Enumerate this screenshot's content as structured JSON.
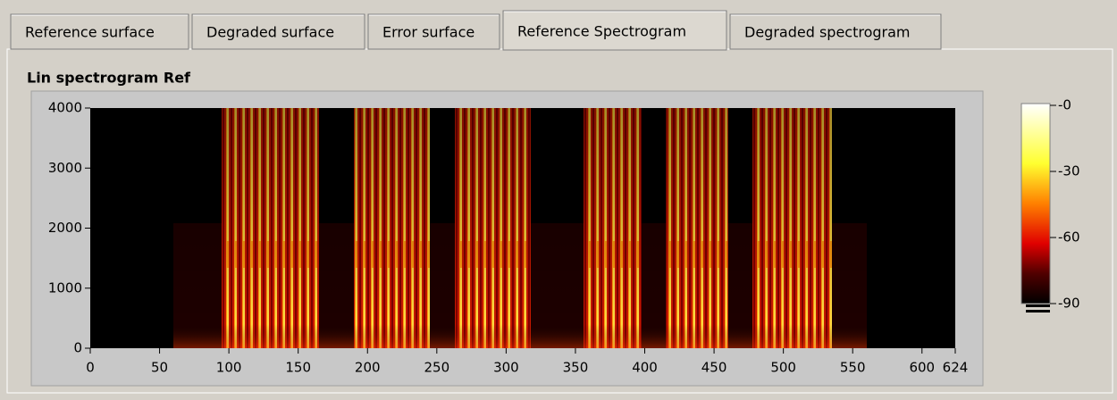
{
  "tabs": [
    {
      "label": "Reference surface",
      "active": false
    },
    {
      "label": "Degraded surface",
      "active": false
    },
    {
      "label": "Error surface",
      "active": false
    },
    {
      "label": "Reference Spectrogram",
      "active": true
    },
    {
      "label": "Degraded spectrogram",
      "active": false
    }
  ],
  "graph": {
    "title": "Lin spectrogram Ref",
    "xlim": [
      0,
      624
    ],
    "xticks": [
      0,
      50,
      100,
      150,
      200,
      250,
      300,
      350,
      400,
      450,
      500,
      550,
      600,
      624
    ],
    "ylim": [
      0,
      4000
    ],
    "yticks": [
      0,
      1000,
      2000,
      3000,
      4000
    ],
    "colorbar": {
      "lim": [
        -90,
        0
      ],
      "ticks": [
        {
          "value": 0,
          "label": "-0"
        },
        -30,
        -60,
        -90
      ]
    }
  }
}
